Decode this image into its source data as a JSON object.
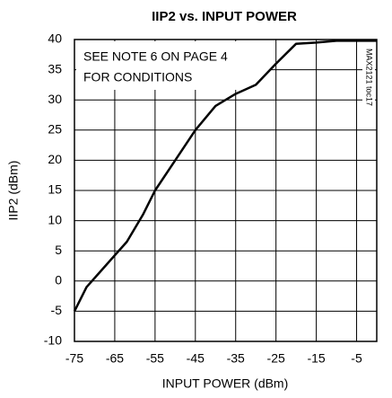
{
  "chart_data": {
    "type": "line",
    "title": "IIP2 vs. INPUT POWER",
    "x_label": "INPUT POWER (dBm)",
    "y_label": "IIP2 (dBm)",
    "annotations": [
      "SEE NOTE 6 ON PAGE 4",
      "FOR CONDITIONS",
      "MAX2121 toc17"
    ],
    "x": [
      -75,
      -72,
      -68,
      -62,
      -58,
      -55,
      -50,
      -45,
      -40,
      -35,
      -30,
      -25,
      -20,
      -15,
      -10,
      -5,
      0
    ],
    "values": [
      -5,
      -1,
      2,
      6.5,
      11,
      15,
      20,
      25,
      29,
      31,
      32.5,
      36,
      39.3,
      39.5,
      39.8,
      39.8,
      39.8
    ],
    "color": "#000000",
    "xlim": [
      -75,
      0
    ],
    "xticks": [
      -75,
      -65,
      -55,
      -45,
      -35,
      -25,
      -15,
      -5
    ],
    "ylim": [
      -10,
      40
    ],
    "yticks": [
      -10,
      -5,
      0,
      5,
      10,
      15,
      20,
      25,
      30,
      35,
      40
    ],
    "grid": true
  }
}
